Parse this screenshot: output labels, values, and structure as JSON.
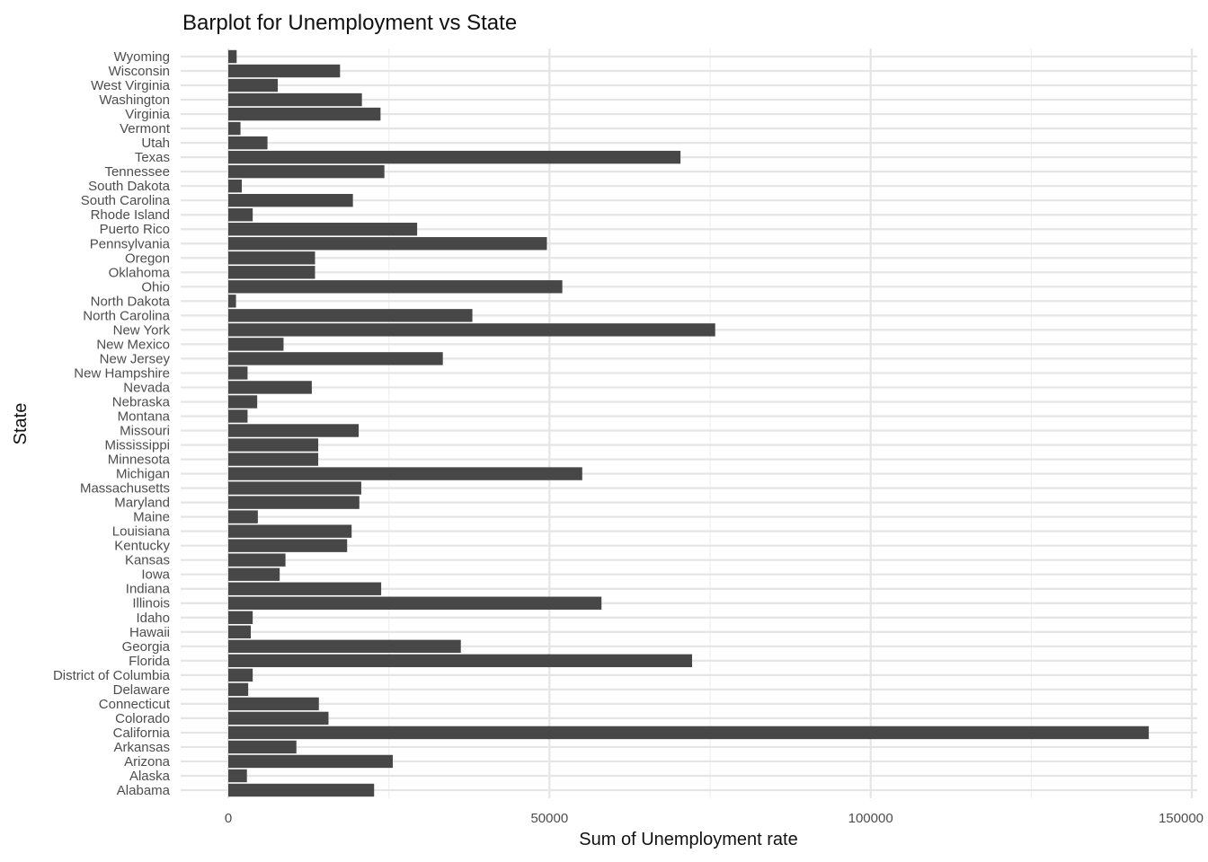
{
  "chart_data": {
    "type": "bar",
    "orientation": "horizontal",
    "title": "Barplot for Unemployment vs State",
    "xlabel": "Sum of Unemployment rate",
    "ylabel": "State",
    "xlim": [
      0,
      150000
    ],
    "xticks": [
      0,
      50000,
      100000,
      150000
    ],
    "xtick_labels": [
      "0",
      "50000",
      "100000",
      "150000"
    ],
    "grid": true,
    "bar_color": "#474747",
    "categories": [
      "Alabama",
      "Alaska",
      "Arizona",
      "Arkansas",
      "California",
      "Colorado",
      "Connecticut",
      "Delaware",
      "District of Columbia",
      "Florida",
      "Georgia",
      "Hawaii",
      "Idaho",
      "Illinois",
      "Indiana",
      "Iowa",
      "Kansas",
      "Kentucky",
      "Louisiana",
      "Maine",
      "Maryland",
      "Massachusetts",
      "Michigan",
      "Minnesota",
      "Mississippi",
      "Missouri",
      "Montana",
      "Nebraska",
      "Nevada",
      "New Hampshire",
      "New Jersey",
      "New Mexico",
      "New York",
      "North Carolina",
      "North Dakota",
      "Ohio",
      "Oklahoma",
      "Oregon",
      "Pennsylvania",
      "Puerto Rico",
      "Rhode Island",
      "South Carolina",
      "South Dakota",
      "Tennessee",
      "Texas",
      "Utah",
      "Vermont",
      "Virginia",
      "Washington",
      "West Virginia",
      "Wisconsin",
      "Wyoming"
    ],
    "values": [
      22700,
      2900,
      25600,
      10600,
      143300,
      15600,
      14100,
      3100,
      3800,
      72200,
      36200,
      3500,
      3800,
      58100,
      23800,
      8000,
      8900,
      18500,
      19200,
      4600,
      20400,
      20700,
      55100,
      14000,
      14000,
      20300,
      3000,
      4500,
      13000,
      3000,
      33400,
      8600,
      75800,
      38000,
      1200,
      52000,
      13500,
      13500,
      49600,
      29400,
      3800,
      19400,
      2100,
      24300,
      70400,
      6100,
      1900,
      23700,
      20800,
      7700,
      17400,
      1300
    ]
  }
}
